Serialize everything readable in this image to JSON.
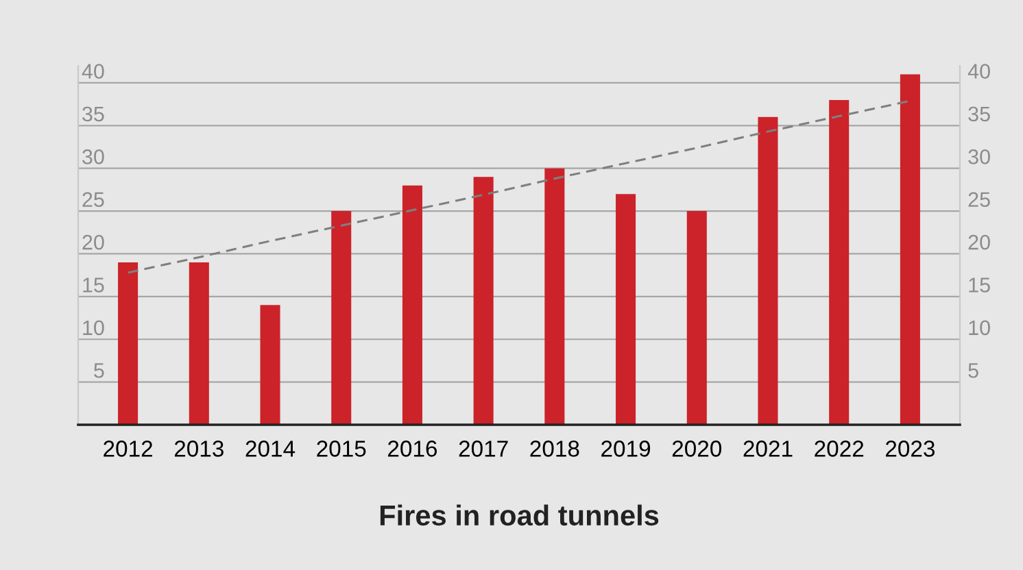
{
  "chart_data": {
    "type": "bar",
    "title": "Fires in road tunnels",
    "categories": [
      "2012",
      "2013",
      "2014",
      "2015",
      "2016",
      "2017",
      "2018",
      "2019",
      "2020",
      "2021",
      "2022",
      "2023"
    ],
    "series": [
      {
        "color": "#cc2229",
        "values": [
          19,
          19,
          14,
          25,
          28,
          29,
          30,
          27,
          25,
          36,
          38,
          41
        ]
      },
      {
        "type": "line",
        "color": "#7f7f7f",
        "line_style": "dashed",
        "values": [
          17.8,
          19.6,
          21.5,
          23.3,
          25.1,
          26.9,
          28.8,
          30.6,
          32.4,
          34.3,
          36.1,
          37.9
        ]
      }
    ],
    "ylim": [
      0,
      42
    ],
    "yticks": [
      5,
      10,
      15,
      20,
      25,
      30,
      35,
      40
    ],
    "y2lim": [
      0,
      42
    ],
    "y2ticks": [
      5,
      10,
      15,
      20,
      25,
      30,
      35,
      40
    ],
    "grid": "y"
  }
}
